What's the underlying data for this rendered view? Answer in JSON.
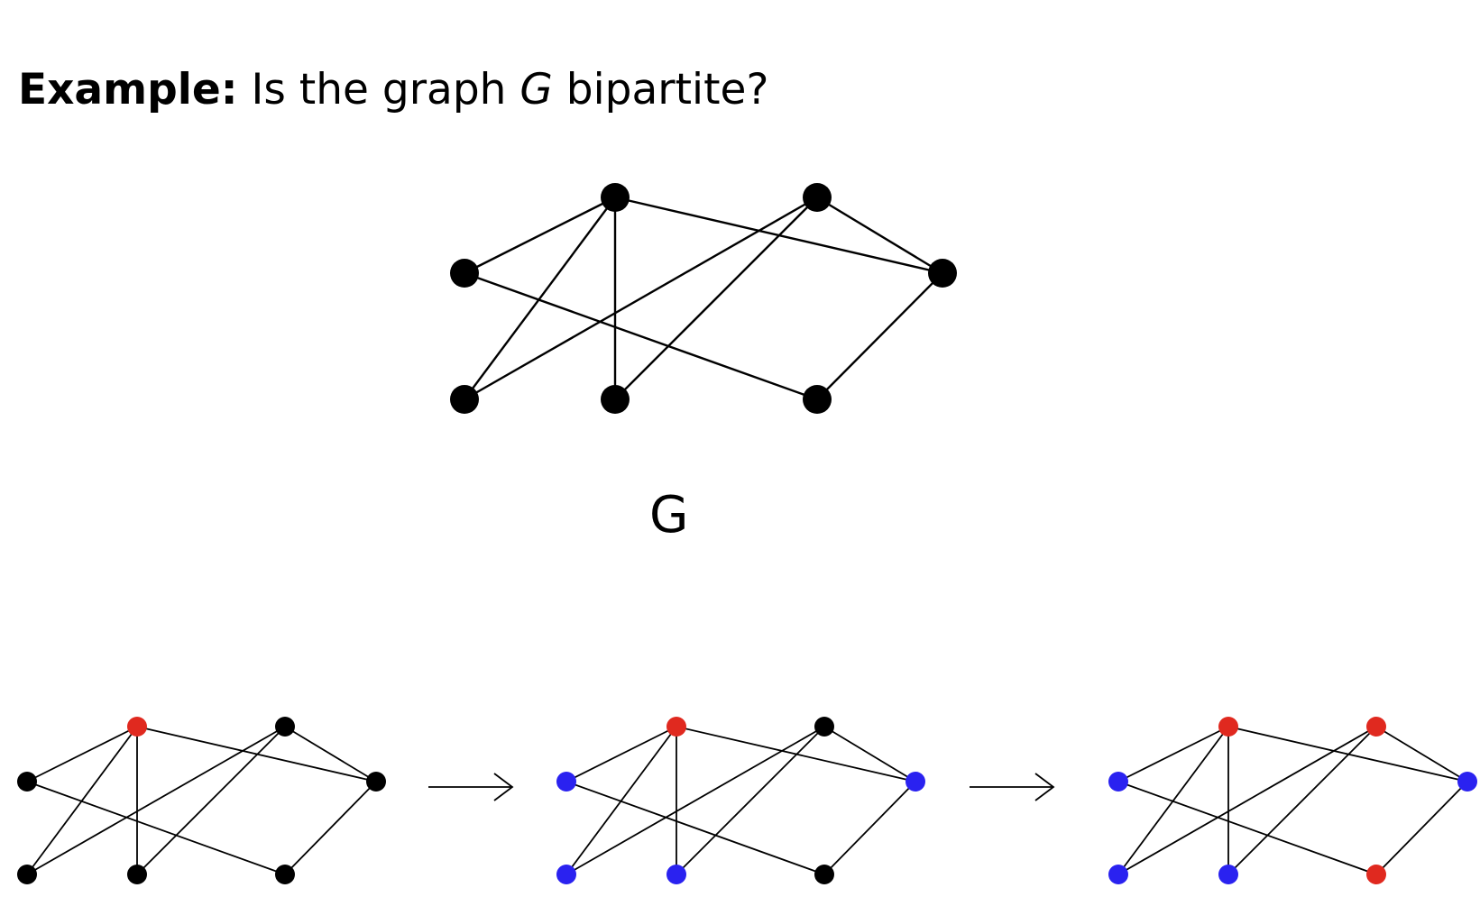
{
  "heading": {
    "label": "Example:",
    "question_prefix": "Is the graph",
    "graph_var": "G",
    "question_suffix": "bipartite?"
  },
  "graph": {
    "label": "G",
    "vertices": [
      "top-left",
      "top-right",
      "left",
      "right",
      "bottom-left",
      "bottom-mid",
      "bottom-right"
    ],
    "edges": [
      [
        "top-left",
        "left"
      ],
      [
        "top-left",
        "bottom-left"
      ],
      [
        "top-left",
        "bottom-mid"
      ],
      [
        "top-left",
        "right"
      ],
      [
        "top-right",
        "bottom-left"
      ],
      [
        "top-right",
        "bottom-mid"
      ],
      [
        "top-right",
        "right"
      ],
      [
        "left",
        "bottom-right"
      ],
      [
        "right",
        "bottom-right"
      ]
    ]
  },
  "coloring_steps": [
    {
      "step": 1,
      "colors": {
        "top-left": "red",
        "top-right": "black",
        "left": "black",
        "right": "black",
        "bottom-left": "black",
        "bottom-mid": "black",
        "bottom-right": "black"
      }
    },
    {
      "step": 2,
      "colors": {
        "top-left": "red",
        "top-right": "black",
        "left": "blue",
        "right": "blue",
        "bottom-left": "blue",
        "bottom-mid": "blue",
        "bottom-right": "black"
      }
    },
    {
      "step": 3,
      "colors": {
        "top-left": "red",
        "top-right": "red",
        "left": "blue",
        "right": "blue",
        "bottom-left": "blue",
        "bottom-mid": "blue",
        "bottom-right": "red"
      }
    }
  ],
  "palette": {
    "red": "#e0291f",
    "blue": "#2a22f0",
    "black": "#000000"
  }
}
